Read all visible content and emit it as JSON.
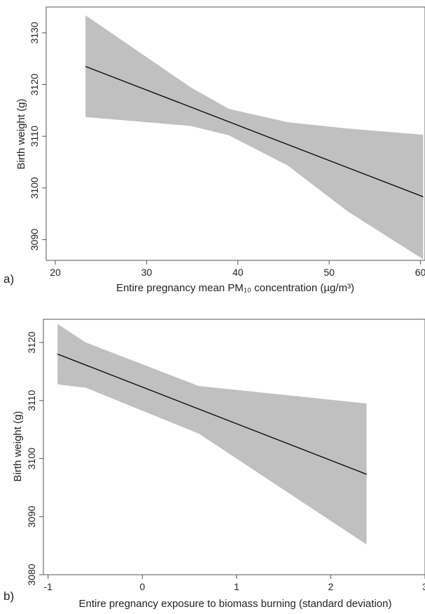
{
  "chart_data": [
    {
      "type": "line",
      "panel_label": "a)",
      "xlabel": "Entire pregnancy mean PM₁₀ concentration (µg/m³)",
      "ylabel": "Birth weight (g)",
      "xlim": [
        19,
        60.5
      ],
      "ylim": [
        3086,
        3135
      ],
      "xticks": [
        20,
        30,
        40,
        50,
        60
      ],
      "yticks": [
        3090,
        3100,
        3110,
        3120,
        3130
      ],
      "series": [
        {
          "values": [
            {
              "x": 23.3,
              "y": 3123.5
            },
            {
              "x": 60.3,
              "y": 3098.3
            }
          ],
          "color": "#000000"
        }
      ],
      "confidence_band": {
        "color": "#c0c0c0",
        "upper": [
          {
            "x": 23.3,
            "y": 3133.4
          },
          {
            "x": 34.8,
            "y": 3119.5
          },
          {
            "x": 39.0,
            "y": 3115.3
          },
          {
            "x": 45.5,
            "y": 3112.7
          },
          {
            "x": 52.0,
            "y": 3111.5
          },
          {
            "x": 60.3,
            "y": 3110.3
          }
        ],
        "lower": [
          {
            "x": 23.3,
            "y": 3113.7
          },
          {
            "x": 34.8,
            "y": 3112.0
          },
          {
            "x": 39.0,
            "y": 3110.2
          },
          {
            "x": 45.5,
            "y": 3104.3
          },
          {
            "x": 52.0,
            "y": 3095.5
          },
          {
            "x": 60.3,
            "y": 3086.2
          }
        ]
      },
      "grid": false
    },
    {
      "type": "line",
      "panel_label": "b)",
      "xlabel": "Entire pregnancy exposure to biomass burning (standard deviation)",
      "ylabel": "Birth weight (g)",
      "xlim": [
        -1.05,
        3
      ],
      "ylim": [
        3080,
        3124
      ],
      "xticks": [
        -1,
        0,
        1,
        2,
        3
      ],
      "yticks": [
        3080,
        3090,
        3100,
        3110,
        3120
      ],
      "series": [
        {
          "values": [
            {
              "x": -0.9,
              "y": 3118.0
            },
            {
              "x": 2.38,
              "y": 3097.3
            }
          ],
          "color": "#000000"
        }
      ],
      "confidence_band": {
        "color": "#c0c0c0",
        "upper": [
          {
            "x": -0.9,
            "y": 3123.2
          },
          {
            "x": -0.6,
            "y": 3120.0
          },
          {
            "x": 0.6,
            "y": 3112.5
          },
          {
            "x": 2.38,
            "y": 3109.5
          }
        ],
        "lower": [
          {
            "x": -0.9,
            "y": 3112.8
          },
          {
            "x": -0.6,
            "y": 3112.2
          },
          {
            "x": 0.6,
            "y": 3104.3
          },
          {
            "x": 2.38,
            "y": 3085.2
          }
        ]
      },
      "grid": false
    }
  ]
}
